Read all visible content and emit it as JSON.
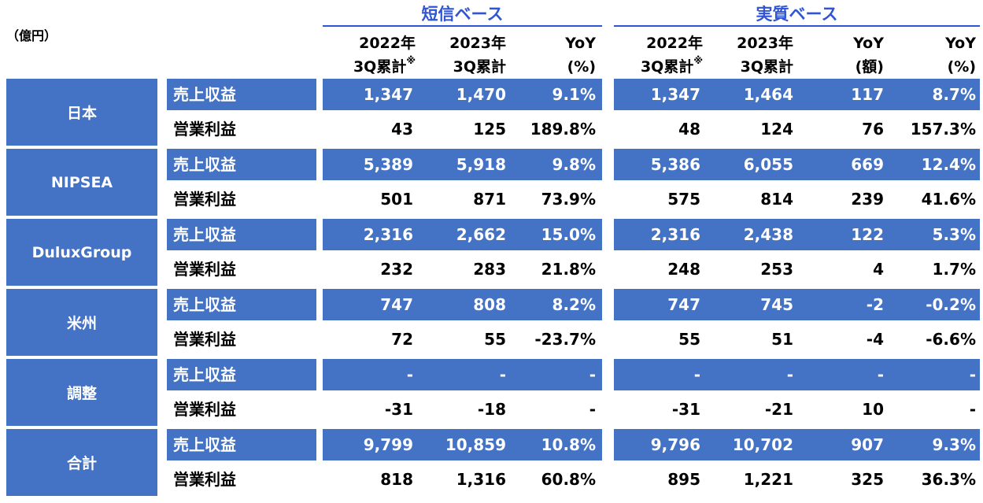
{
  "unit": "（億円）",
  "sections": {
    "left": "短信ベース",
    "right": "実質ベース"
  },
  "col_heads": [
    {
      "l1": "2022年",
      "l2": "3Q累計",
      "note": "※"
    },
    {
      "l1": "2023年",
      "l2": "3Q累計",
      "note": ""
    },
    {
      "l1": "YoY",
      "l2": "(%)",
      "note": ""
    },
    {
      "l1": "2022年",
      "l2": "3Q累計",
      "note": "※"
    },
    {
      "l1": "2023年",
      "l2": "3Q累計",
      "note": ""
    },
    {
      "l1": "YoY",
      "l2": "(額)",
      "note": ""
    },
    {
      "l1": "YoY",
      "l2": "(%)",
      "note": ""
    }
  ],
  "regions": [
    {
      "name": "日本",
      "rows": [
        {
          "label": "売上収益",
          "values": [
            "1,347",
            "1,470",
            "9.1%",
            "1,347",
            "1,464",
            "117",
            "8.7%"
          ]
        },
        {
          "label": "営業利益",
          "values": [
            "43",
            "125",
            "189.8%",
            "48",
            "124",
            "76",
            "157.3%"
          ]
        }
      ]
    },
    {
      "name": "NIPSEA",
      "rows": [
        {
          "label": "売上収益",
          "values": [
            "5,389",
            "5,918",
            "9.8%",
            "5,386",
            "6,055",
            "669",
            "12.4%"
          ]
        },
        {
          "label": "営業利益",
          "values": [
            "501",
            "871",
            "73.9%",
            "575",
            "814",
            "239",
            "41.6%"
          ]
        }
      ]
    },
    {
      "name": "DuluxGroup",
      "rows": [
        {
          "label": "売上収益",
          "values": [
            "2,316",
            "2,662",
            "15.0%",
            "2,316",
            "2,438",
            "122",
            "5.3%"
          ]
        },
        {
          "label": "営業利益",
          "values": [
            "232",
            "283",
            "21.8%",
            "248",
            "253",
            "4",
            "1.7%"
          ]
        }
      ]
    },
    {
      "name": "米州",
      "rows": [
        {
          "label": "売上収益",
          "values": [
            "747",
            "808",
            "8.2%",
            "747",
            "745",
            "-2",
            "-0.2%"
          ]
        },
        {
          "label": "営業利益",
          "values": [
            "72",
            "55",
            "-23.7%",
            "55",
            "51",
            "-4",
            "-6.6%"
          ]
        }
      ]
    },
    {
      "name": "調整",
      "rows": [
        {
          "label": "売上収益",
          "values": [
            "-",
            "-",
            "-",
            "-",
            "-",
            "-",
            "-"
          ]
        },
        {
          "label": "営業利益",
          "values": [
            "-31",
            "-18",
            "-",
            "-31",
            "-21",
            "10",
            "-"
          ]
        }
      ]
    },
    {
      "name": "合計",
      "rows": [
        {
          "label": "売上収益",
          "values": [
            "9,799",
            "10,859",
            "10.8%",
            "9,796",
            "10,702",
            "907",
            "9.3%"
          ]
        },
        {
          "label": "営業利益",
          "values": [
            "818",
            "1,316",
            "60.8%",
            "895",
            "1,221",
            "325",
            "36.3%"
          ]
        }
      ]
    }
  ],
  "colors": {
    "blue": "#4472C4",
    "section_text": "#2F55D4"
  }
}
